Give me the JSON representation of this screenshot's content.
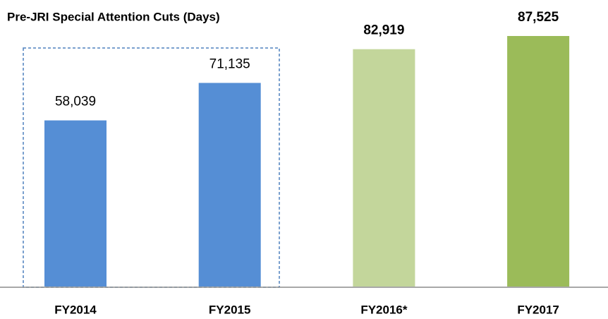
{
  "chart_data": {
    "type": "bar",
    "title": "Pre-JRI Special Attention Cuts (Days)",
    "categories": [
      "FY2014",
      "FY2015",
      "FY2016*",
      "FY2017"
    ],
    "values": [
      58039,
      71135,
      82919,
      87525
    ],
    "value_labels": [
      "58,039",
      "71,135",
      "82,919",
      "87,525"
    ],
    "colors": [
      "#558ed5",
      "#558ed5",
      "#c3d69b",
      "#9bbb59"
    ]
  }
}
